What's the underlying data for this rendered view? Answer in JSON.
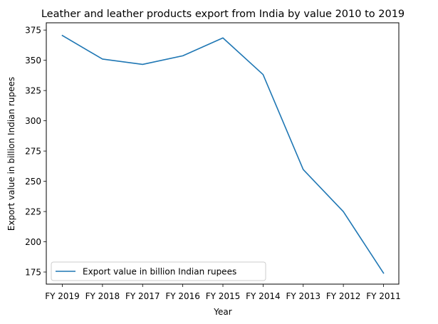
{
  "chart_data": {
    "type": "line",
    "title": "Leather and leather products export from India by value 2010 to 2019",
    "xlabel": "Year",
    "ylabel": "Export value in billion Indian rupees",
    "categories": [
      "FY 2019",
      "FY 2018",
      "FY 2017",
      "FY 2016",
      "FY 2015",
      "FY 2014",
      "FY 2013",
      "FY 2012",
      "FY 2011"
    ],
    "series": [
      {
        "name": "Export value in billion Indian rupees",
        "values": [
          370.5,
          351.0,
          346.6,
          353.7,
          368.5,
          338.2,
          259.7,
          224.9,
          174.1
        ],
        "color": "#1f77b4"
      }
    ],
    "ylim": [
      165,
      381
    ],
    "yticks": [
      175,
      200,
      225,
      250,
      275,
      300,
      325,
      350,
      375
    ],
    "grid": false,
    "legend": "lower-left"
  }
}
